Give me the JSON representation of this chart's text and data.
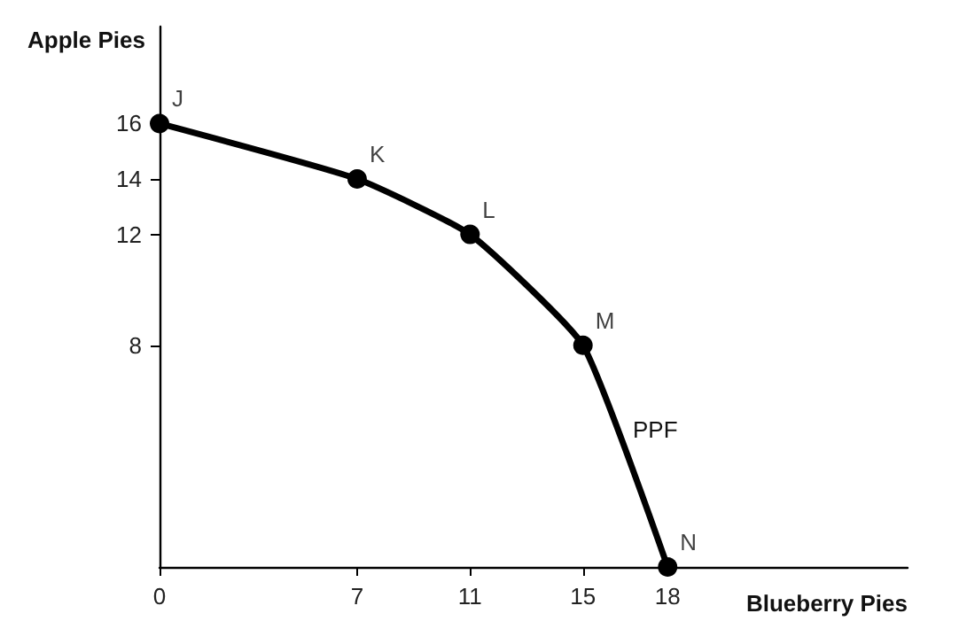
{
  "chart_data": {
    "type": "line",
    "xlabel": "Blueberry Pies",
    "ylabel": "Apple Pies",
    "x": [
      0,
      7,
      11,
      15,
      18
    ],
    "series": [
      {
        "color": "#000000",
        "values": [
          16,
          14,
          12,
          8,
          0
        ]
      }
    ],
    "xlim": [
      0,
      26.5
    ],
    "ylim": [
      0,
      19.5
    ],
    "xticks": [
      0,
      7,
      11,
      15,
      18
    ],
    "yticks": [
      8,
      12,
      14,
      16
    ],
    "marker": "circle",
    "line_style": "solid",
    "grid": false,
    "annotations": [
      {
        "text": "J",
        "x": 0,
        "y": 16
      },
      {
        "text": "K",
        "x": 7,
        "y": 14
      },
      {
        "text": "L",
        "x": 11,
        "y": 12
      },
      {
        "text": "M",
        "x": 15,
        "y": 8
      },
      {
        "text": "N",
        "x": 18,
        "y": 0
      },
      "PPF"
    ]
  }
}
